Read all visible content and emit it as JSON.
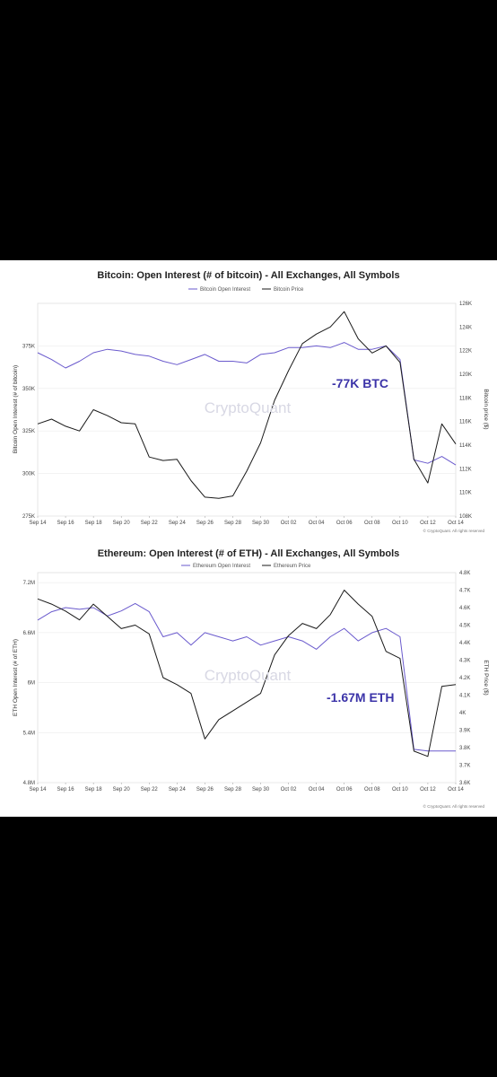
{
  "colors": {
    "oi": "#6a5acd",
    "price": "#1a1a1a",
    "annotation": "#3b33a8"
  },
  "chart_data": [
    {
      "type": "line",
      "title": "Bitcoin: Open Interest (# of bitcoin) - All Exchanges, All Symbols",
      "ylabel_left": "Bitcoin Open Interest (# of bitcoin)",
      "ylabel_right": "Bitcoin price ($)",
      "x_ticks": [
        "Sep 14",
        "Sep 16",
        "Sep 18",
        "Sep 20",
        "Sep 22",
        "Sep 24",
        "Sep 26",
        "Sep 28",
        "Sep 30",
        "Oct 02",
        "Oct 04",
        "Oct 06",
        "Oct 08",
        "Oct 10",
        "Oct 12",
        "Oct 14"
      ],
      "x": [
        "Sep 14",
        "Sep 15",
        "Sep 16",
        "Sep 17",
        "Sep 18",
        "Sep 19",
        "Sep 20",
        "Sep 21",
        "Sep 22",
        "Sep 23",
        "Sep 24",
        "Sep 25",
        "Sep 26",
        "Sep 27",
        "Sep 28",
        "Sep 29",
        "Sep 30",
        "Oct 01",
        "Oct 02",
        "Oct 03",
        "Oct 04",
        "Oct 05",
        "Oct 06",
        "Oct 07",
        "Oct 08",
        "Oct 09",
        "Oct 10",
        "Oct 11",
        "Oct 12",
        "Oct 13",
        "Oct 14"
      ],
      "left_ticks": [
        "275K",
        "300K",
        "325K",
        "350K",
        "375K"
      ],
      "left_range": [
        275000,
        400000
      ],
      "right_ticks": [
        "108K",
        "110K",
        "112K",
        "114K",
        "116K",
        "118K",
        "120K",
        "122K",
        "124K",
        "126K"
      ],
      "right_range": [
        108000,
        126000
      ],
      "series": [
        {
          "name": "Bitcoin Open Interest",
          "axis": "left",
          "color": "#6a5acd",
          "values": [
            371000,
            367000,
            362000,
            366000,
            371000,
            373000,
            372000,
            370000,
            369000,
            366000,
            364000,
            367000,
            370000,
            366000,
            366000,
            365000,
            370000,
            371000,
            374000,
            374000,
            375000,
            374000,
            377000,
            373000,
            373000,
            375000,
            367000,
            308000,
            306000,
            310000,
            305000
          ]
        },
        {
          "name": "Bitcoin Price",
          "axis": "right",
          "color": "#1a1a1a",
          "values": [
            115800,
            116200,
            115600,
            115200,
            117000,
            116500,
            115900,
            115800,
            113000,
            112700,
            112800,
            111000,
            109600,
            109500,
            109700,
            111800,
            114200,
            117800,
            120300,
            122600,
            123400,
            124000,
            125300,
            123000,
            121800,
            122400,
            121000,
            112800,
            110800,
            115800,
            114100
          ]
        }
      ],
      "annotation": "-77K BTC",
      "watermark": "CryptoQuant",
      "copyright": "© CryptoQuant. All rights reserved"
    },
    {
      "type": "line",
      "title": "Ethereum: Open Interest (# of ETH) - All Exchanges, All Symbols",
      "ylabel_left": "ETH Open Interest (# of ETH)",
      "ylabel_right": "ETH Price ($)",
      "x_ticks": [
        "Sep 14",
        "Sep 16",
        "Sep 18",
        "Sep 20",
        "Sep 22",
        "Sep 24",
        "Sep 26",
        "Sep 28",
        "Sep 30",
        "Oct 02",
        "Oct 04",
        "Oct 06",
        "Oct 08",
        "Oct 10",
        "Oct 12",
        "Oct 14"
      ],
      "x": [
        "Sep 14",
        "Sep 15",
        "Sep 16",
        "Sep 17",
        "Sep 18",
        "Sep 19",
        "Sep 20",
        "Sep 21",
        "Sep 22",
        "Sep 23",
        "Sep 24",
        "Sep 25",
        "Sep 26",
        "Sep 27",
        "Sep 28",
        "Sep 29",
        "Sep 30",
        "Oct 01",
        "Oct 02",
        "Oct 03",
        "Oct 04",
        "Oct 05",
        "Oct 06",
        "Oct 07",
        "Oct 08",
        "Oct 09",
        "Oct 10",
        "Oct 11",
        "Oct 12",
        "Oct 13",
        "Oct 14"
      ],
      "left_ticks": [
        "4.8M",
        "5.4M",
        "6M",
        "6.6M",
        "7.2M"
      ],
      "left_range": [
        4800000,
        7320000
      ],
      "right_ticks": [
        "3.6K",
        "3.7K",
        "3.8K",
        "3.9K",
        "4K",
        "4.1K",
        "4.2K",
        "4.3K",
        "4.4K",
        "4.5K",
        "4.6K",
        "4.7K",
        "4.8K"
      ],
      "right_range": [
        3600,
        4800
      ],
      "series": [
        {
          "name": "Ethereum Open Interest",
          "axis": "left",
          "color": "#6a5acd",
          "values": [
            6750000,
            6850000,
            6900000,
            6880000,
            6900000,
            6800000,
            6860000,
            6950000,
            6850000,
            6550000,
            6600000,
            6450000,
            6600000,
            6550000,
            6500000,
            6550000,
            6450000,
            6500000,
            6550000,
            6500000,
            6400000,
            6550000,
            6650000,
            6500000,
            6600000,
            6650000,
            6550000,
            5200000,
            5180000,
            5180000,
            5180000
          ]
        },
        {
          "name": "Ethereum Price",
          "axis": "right",
          "color": "#1a1a1a",
          "values": [
            4650,
            4620,
            4580,
            4530,
            4620,
            4550,
            4480,
            4500,
            4450,
            4200,
            4160,
            4110,
            3850,
            3960,
            4010,
            4060,
            4110,
            4330,
            4440,
            4510,
            4480,
            4560,
            4700,
            4620,
            4550,
            4350,
            4310,
            3780,
            3750,
            4150,
            4160
          ]
        }
      ],
      "annotation": "-1.67M ETH",
      "watermark": "CryptoQuant",
      "copyright": "© CryptoQuant. All rights reserved"
    }
  ]
}
